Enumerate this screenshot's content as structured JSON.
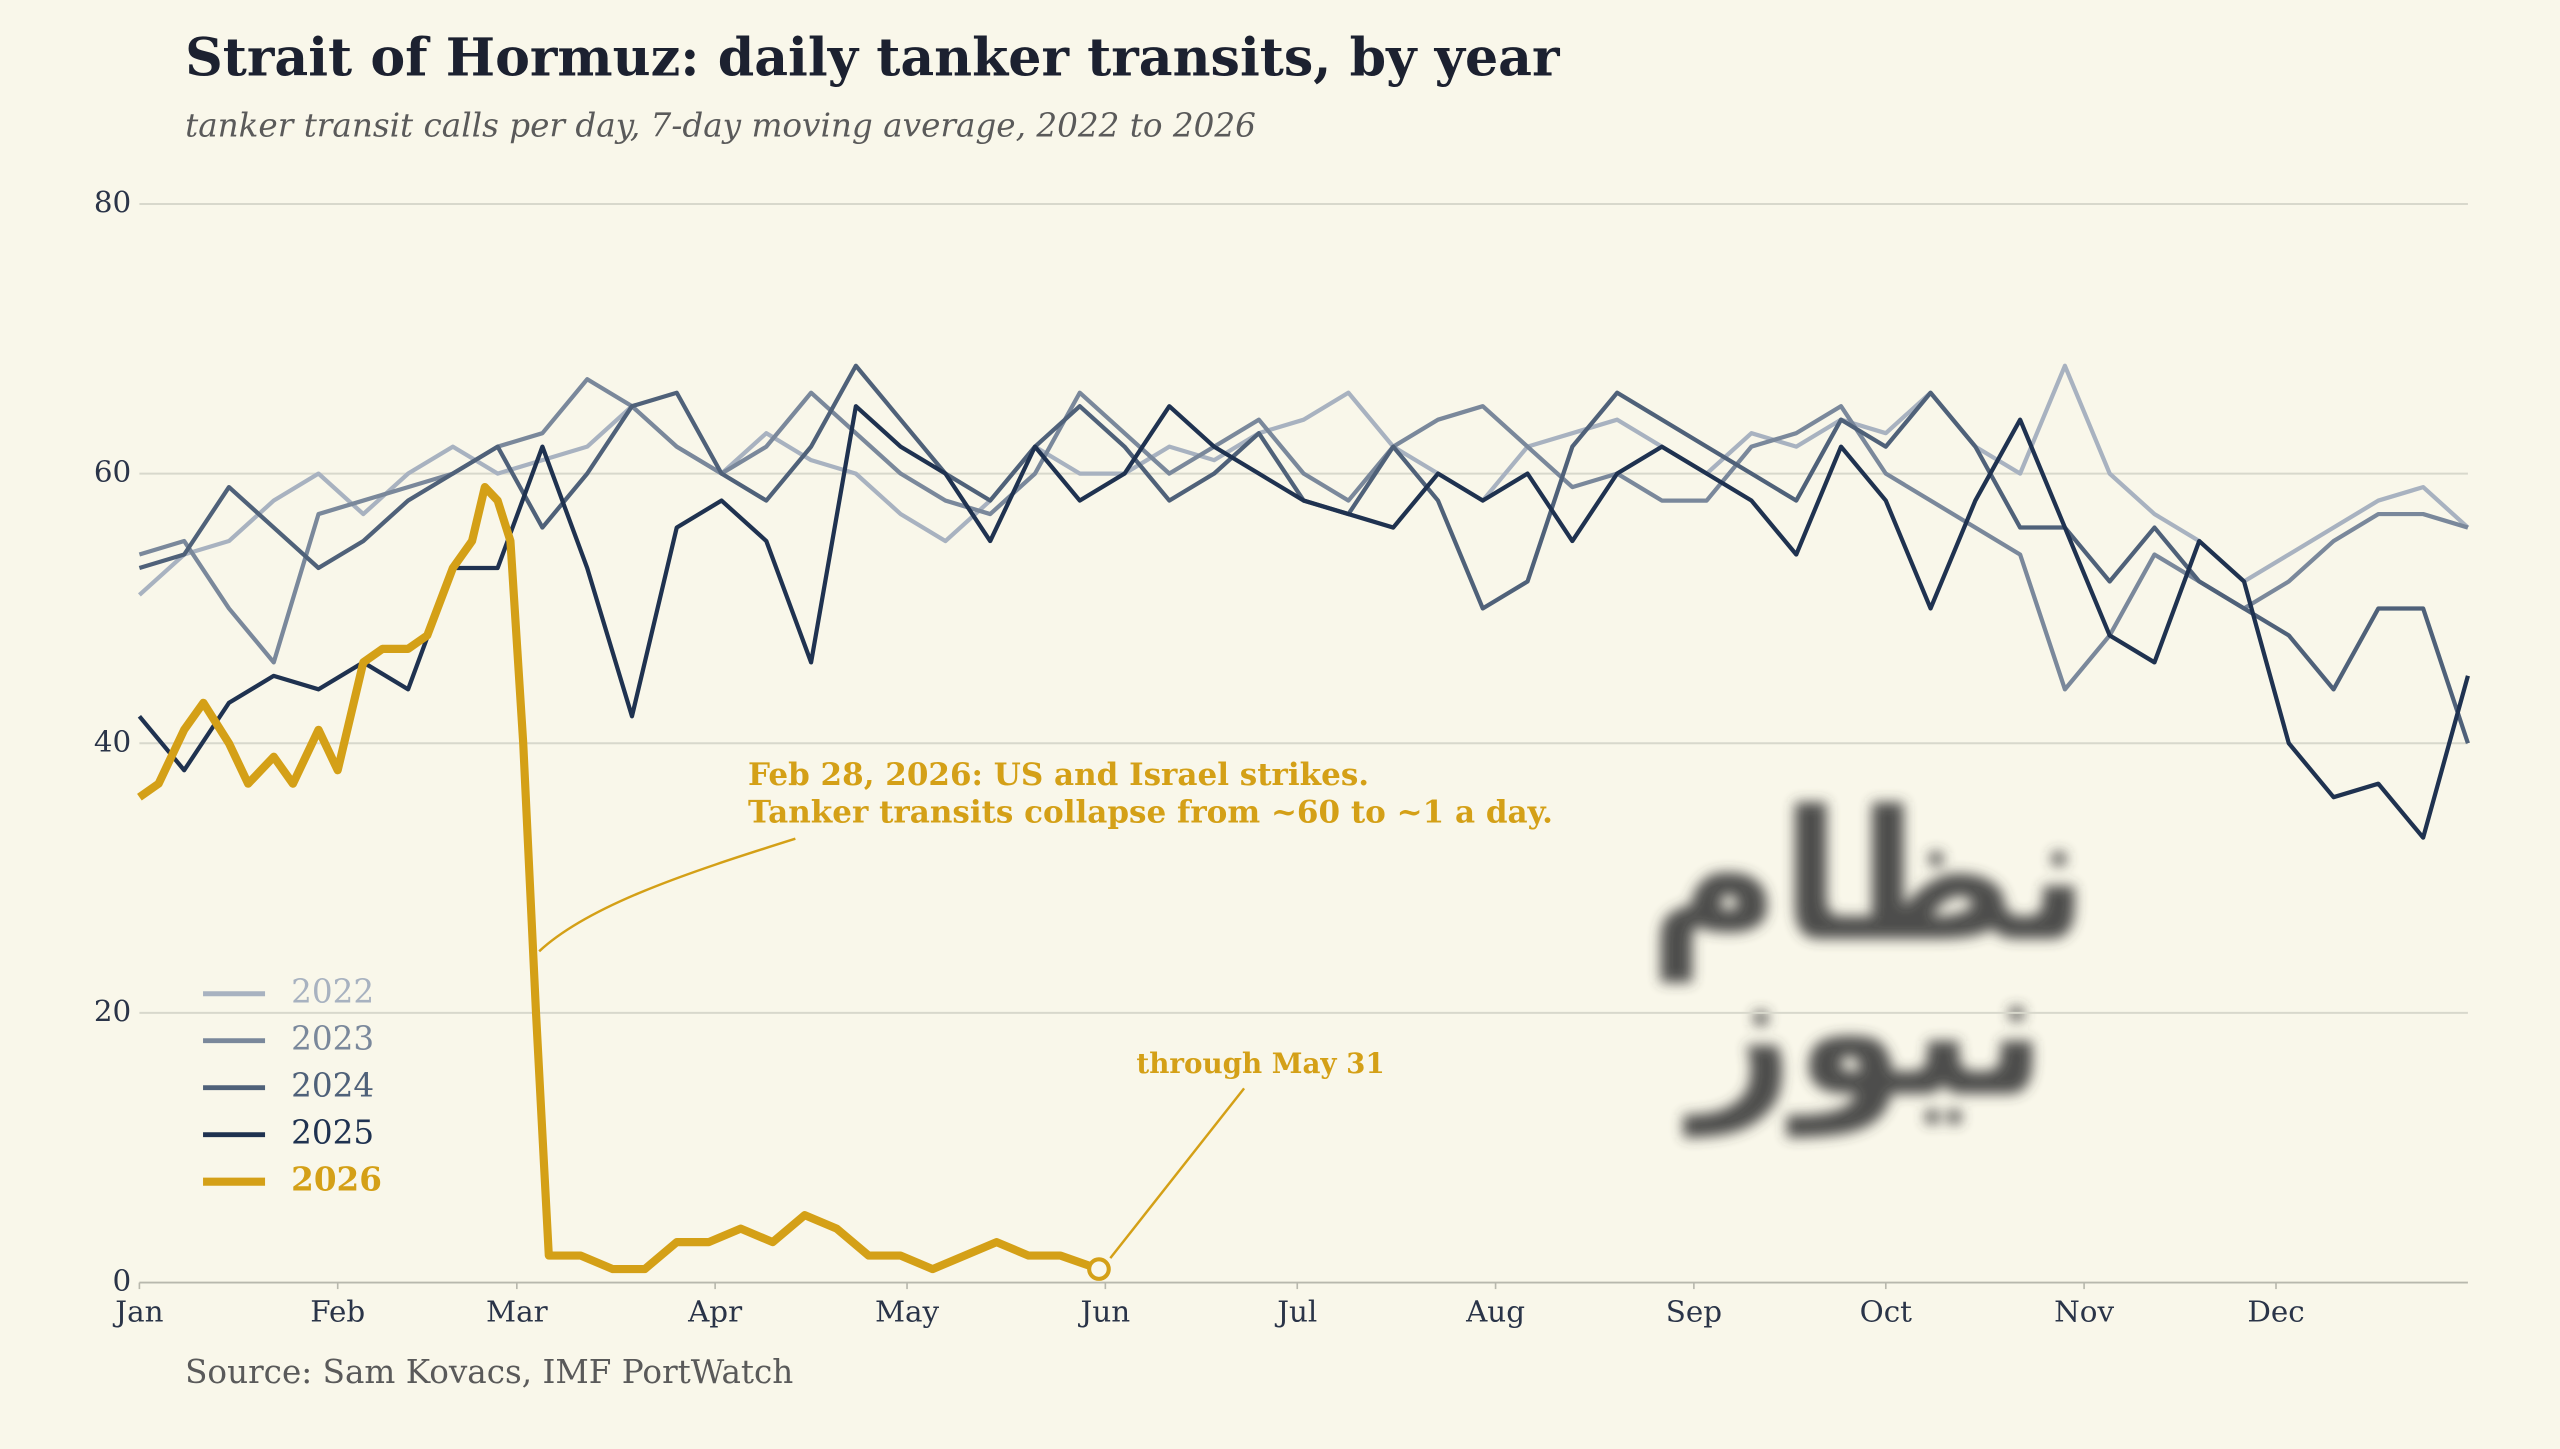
{
  "chart_data": {
    "type": "line",
    "title": "Strait of Hormuz: daily tanker transits, by year",
    "subtitle": "tanker transit calls per day, 7-day moving average, 2022 to 2026",
    "source": "Source: Sam Kovacs, IMF PortWatch",
    "annotations": [
      "Feb 28, 2026: US and Israel strikes.",
      "Tanker transits collapse from ~60 to ~1 a day.",
      "through May 31"
    ],
    "watermark": [
      "نظام",
      "نیوز"
    ],
    "xlim": [
      1,
      365
    ],
    "ylim": [
      0,
      80
    ],
    "yticks": [
      0,
      20,
      40,
      60,
      80
    ],
    "grid": true,
    "xticks": [
      {
        "value": 1,
        "label": "Jan"
      },
      {
        "value": 32,
        "label": "Feb"
      },
      {
        "value": 60,
        "label": "Mar"
      },
      {
        "value": 91,
        "label": "Apr"
      },
      {
        "value": 121,
        "label": "May"
      },
      {
        "value": 152,
        "label": "Jun"
      },
      {
        "value": 182,
        "label": "Jul"
      },
      {
        "value": 213,
        "label": "Aug"
      },
      {
        "value": 244,
        "label": "Sep"
      },
      {
        "value": 274,
        "label": "Oct"
      },
      {
        "value": 305,
        "label": "Nov"
      },
      {
        "value": 335,
        "label": "Dec"
      }
    ],
    "x": [
      1,
      8,
      15,
      22,
      29,
      36,
      43,
      50,
      57,
      64,
      71,
      78,
      85,
      92,
      99,
      106,
      113,
      120,
      127,
      134,
      141,
      148,
      155,
      162,
      169,
      176,
      183,
      190,
      197,
      204,
      211,
      218,
      225,
      232,
      239,
      246,
      253,
      260,
      267,
      274,
      281,
      288,
      295,
      302,
      309,
      316,
      323,
      330,
      337,
      344,
      351,
      358,
      365
    ],
    "series": [
      {
        "name": "2022",
        "color": "#a8b2c0",
        "values": [
          51,
          54,
          55,
          58,
          60,
          57,
          60,
          62,
          60,
          61,
          62,
          65,
          62,
          60,
          63,
          61,
          60,
          57,
          55,
          58,
          62,
          60,
          60,
          62,
          61,
          63,
          64,
          66,
          62,
          60,
          58,
          62,
          63,
          64,
          62,
          60,
          63,
          62,
          64,
          63,
          66,
          62,
          60,
          68,
          60,
          57,
          55,
          52,
          54,
          56,
          58,
          59,
          56
        ]
      },
      {
        "name": "2023",
        "color": "#7a889b",
        "values": [
          54,
          55,
          50,
          46,
          57,
          58,
          59,
          60,
          62,
          63,
          67,
          65,
          62,
          60,
          62,
          66,
          63,
          60,
          58,
          57,
          60,
          66,
          63,
          60,
          62,
          64,
          60,
          58,
          62,
          64,
          65,
          62,
          59,
          60,
          58,
          58,
          62,
          63,
          65,
          60,
          58,
          56,
          54,
          44,
          48,
          54,
          52,
          50,
          52,
          55,
          57,
          57,
          56
        ]
      },
      {
        "name": "2024",
        "color": "#4f6179",
        "values": [
          53,
          54,
          59,
          56,
          53,
          55,
          58,
          60,
          62,
          56,
          60,
          65,
          66,
          60,
          58,
          62,
          68,
          64,
          60,
          58,
          62,
          65,
          62,
          58,
          60,
          63,
          58,
          57,
          62,
          58,
          50,
          52,
          62,
          66,
          64,
          62,
          60,
          58,
          64,
          62,
          66,
          62,
          56,
          56,
          52,
          56,
          52,
          50,
          48,
          44,
          50,
          50,
          40
        ]
      },
      {
        "name": "2025",
        "color": "#1f3250",
        "values": [
          42,
          38,
          43,
          45,
          44,
          46,
          44,
          53,
          53,
          62,
          53,
          42,
          56,
          58,
          55,
          46,
          65,
          62,
          60,
          55,
          62,
          58,
          60,
          65,
          62,
          60,
          58,
          57,
          56,
          60,
          58,
          60,
          55,
          60,
          62,
          60,
          58,
          54,
          62,
          58,
          50,
          58,
          64,
          56,
          48,
          46,
          55,
          52,
          40,
          36,
          37,
          33,
          45
        ]
      },
      {
        "name": "2026",
        "color": "#d4a017",
        "x": [
          1,
          4,
          8,
          11,
          15,
          18,
          22,
          25,
          29,
          32,
          36,
          39,
          43,
          46,
          50,
          53,
          55,
          57,
          59,
          61,
          63,
          65,
          70,
          75,
          80,
          85,
          90,
          95,
          100,
          105,
          110,
          115,
          120,
          125,
          130,
          135,
          140,
          145,
          151
        ],
        "values": [
          36,
          37,
          41,
          43,
          40,
          37,
          39,
          37,
          41,
          38,
          46,
          47,
          47,
          48,
          53,
          55,
          59,
          58,
          55,
          40,
          20,
          2,
          2,
          1,
          1,
          3,
          3,
          4,
          3,
          5,
          4,
          2,
          2,
          1,
          2,
          3,
          2,
          2,
          1
        ]
      }
    ]
  }
}
